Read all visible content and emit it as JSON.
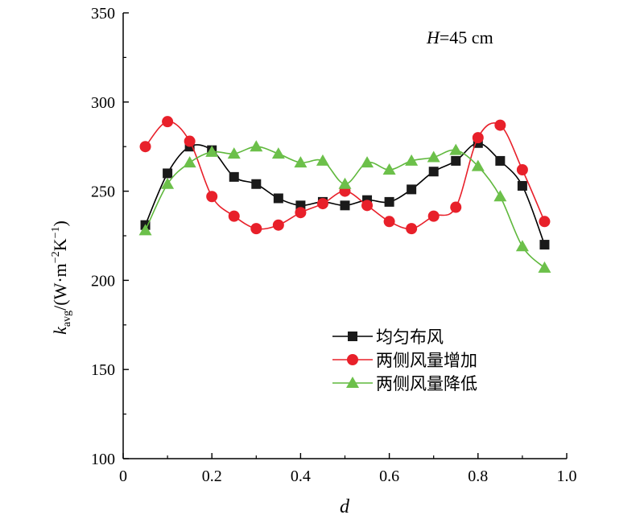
{
  "chart_data": {
    "type": "line",
    "annotation": {
      "var": "H",
      "text": "=45 cm"
    },
    "xlabel": "d",
    "ylabel": {
      "base": "k",
      "sub": "avg",
      "unit_open": "/(W·m",
      "sup1": "−2",
      "mid": "K",
      "sup2": "−1",
      "unit_close": ")"
    },
    "xlim": [
      0,
      1.0
    ],
    "ylim": [
      100,
      350
    ],
    "xticks": [
      0,
      0.2,
      0.4,
      0.6,
      0.8,
      1.0
    ],
    "xtick_labels": [
      "0",
      "0.2",
      "0.4",
      "0.6",
      "0.8",
      "1.0"
    ],
    "yticks": [
      100,
      150,
      200,
      250,
      300,
      350
    ],
    "ytick_labels": [
      "100",
      "150",
      "200",
      "250",
      "300",
      "350"
    ],
    "x": [
      0.05,
      0.1,
      0.15,
      0.2,
      0.25,
      0.3,
      0.35,
      0.4,
      0.45,
      0.5,
      0.55,
      0.6,
      0.65,
      0.7,
      0.75,
      0.8,
      0.85,
      0.9,
      0.95
    ],
    "legend_position": "lower-center",
    "grid": false,
    "series": [
      {
        "name": "均匀布风",
        "marker": "square",
        "color": "#000000",
        "marker_color": "#1a1a1a",
        "values": [
          231,
          260,
          275,
          273,
          258,
          254,
          246,
          242,
          244,
          242,
          245,
          244,
          251,
          261,
          267,
          277,
          267,
          253,
          220
        ]
      },
      {
        "name": "两侧风量增加",
        "marker": "circle",
        "color": "#e8202a",
        "marker_color": "#e8202a",
        "values": [
          275,
          289,
          278,
          247,
          236,
          229,
          231,
          238,
          243,
          250,
          242,
          233,
          229,
          236,
          241,
          280,
          287,
          262,
          233
        ]
      },
      {
        "name": "两侧风量降低",
        "marker": "triangle",
        "color": "#5fb83c",
        "marker_color": "#6cc04a",
        "values": [
          228,
          254,
          266,
          272,
          271,
          275,
          271,
          266,
          267,
          254,
          266,
          262,
          267,
          269,
          273,
          264,
          247,
          219,
          207
        ]
      }
    ]
  }
}
